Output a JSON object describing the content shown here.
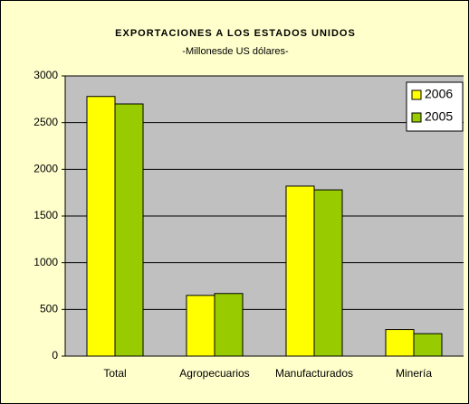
{
  "chart_data": {
    "type": "bar",
    "title": "EXPORTACIONES A LOS ESTADOS UNIDOS",
    "subtitle": "-Millonesde US dólares-",
    "categories": [
      "Total",
      "Agropecuarios",
      "Manufacturados",
      "Minería"
    ],
    "series": [
      {
        "name": "2006",
        "color": "#ffff00",
        "values": [
          2780,
          650,
          1820,
          285
        ]
      },
      {
        "name": "2005",
        "color": "#99cc00",
        "values": [
          2700,
          670,
          1780,
          240
        ]
      }
    ],
    "ylim": [
      0,
      3000
    ],
    "yticks": [
      0,
      500,
      1000,
      1500,
      2000,
      2500,
      3000
    ],
    "grid": true,
    "legend": "top-right"
  }
}
